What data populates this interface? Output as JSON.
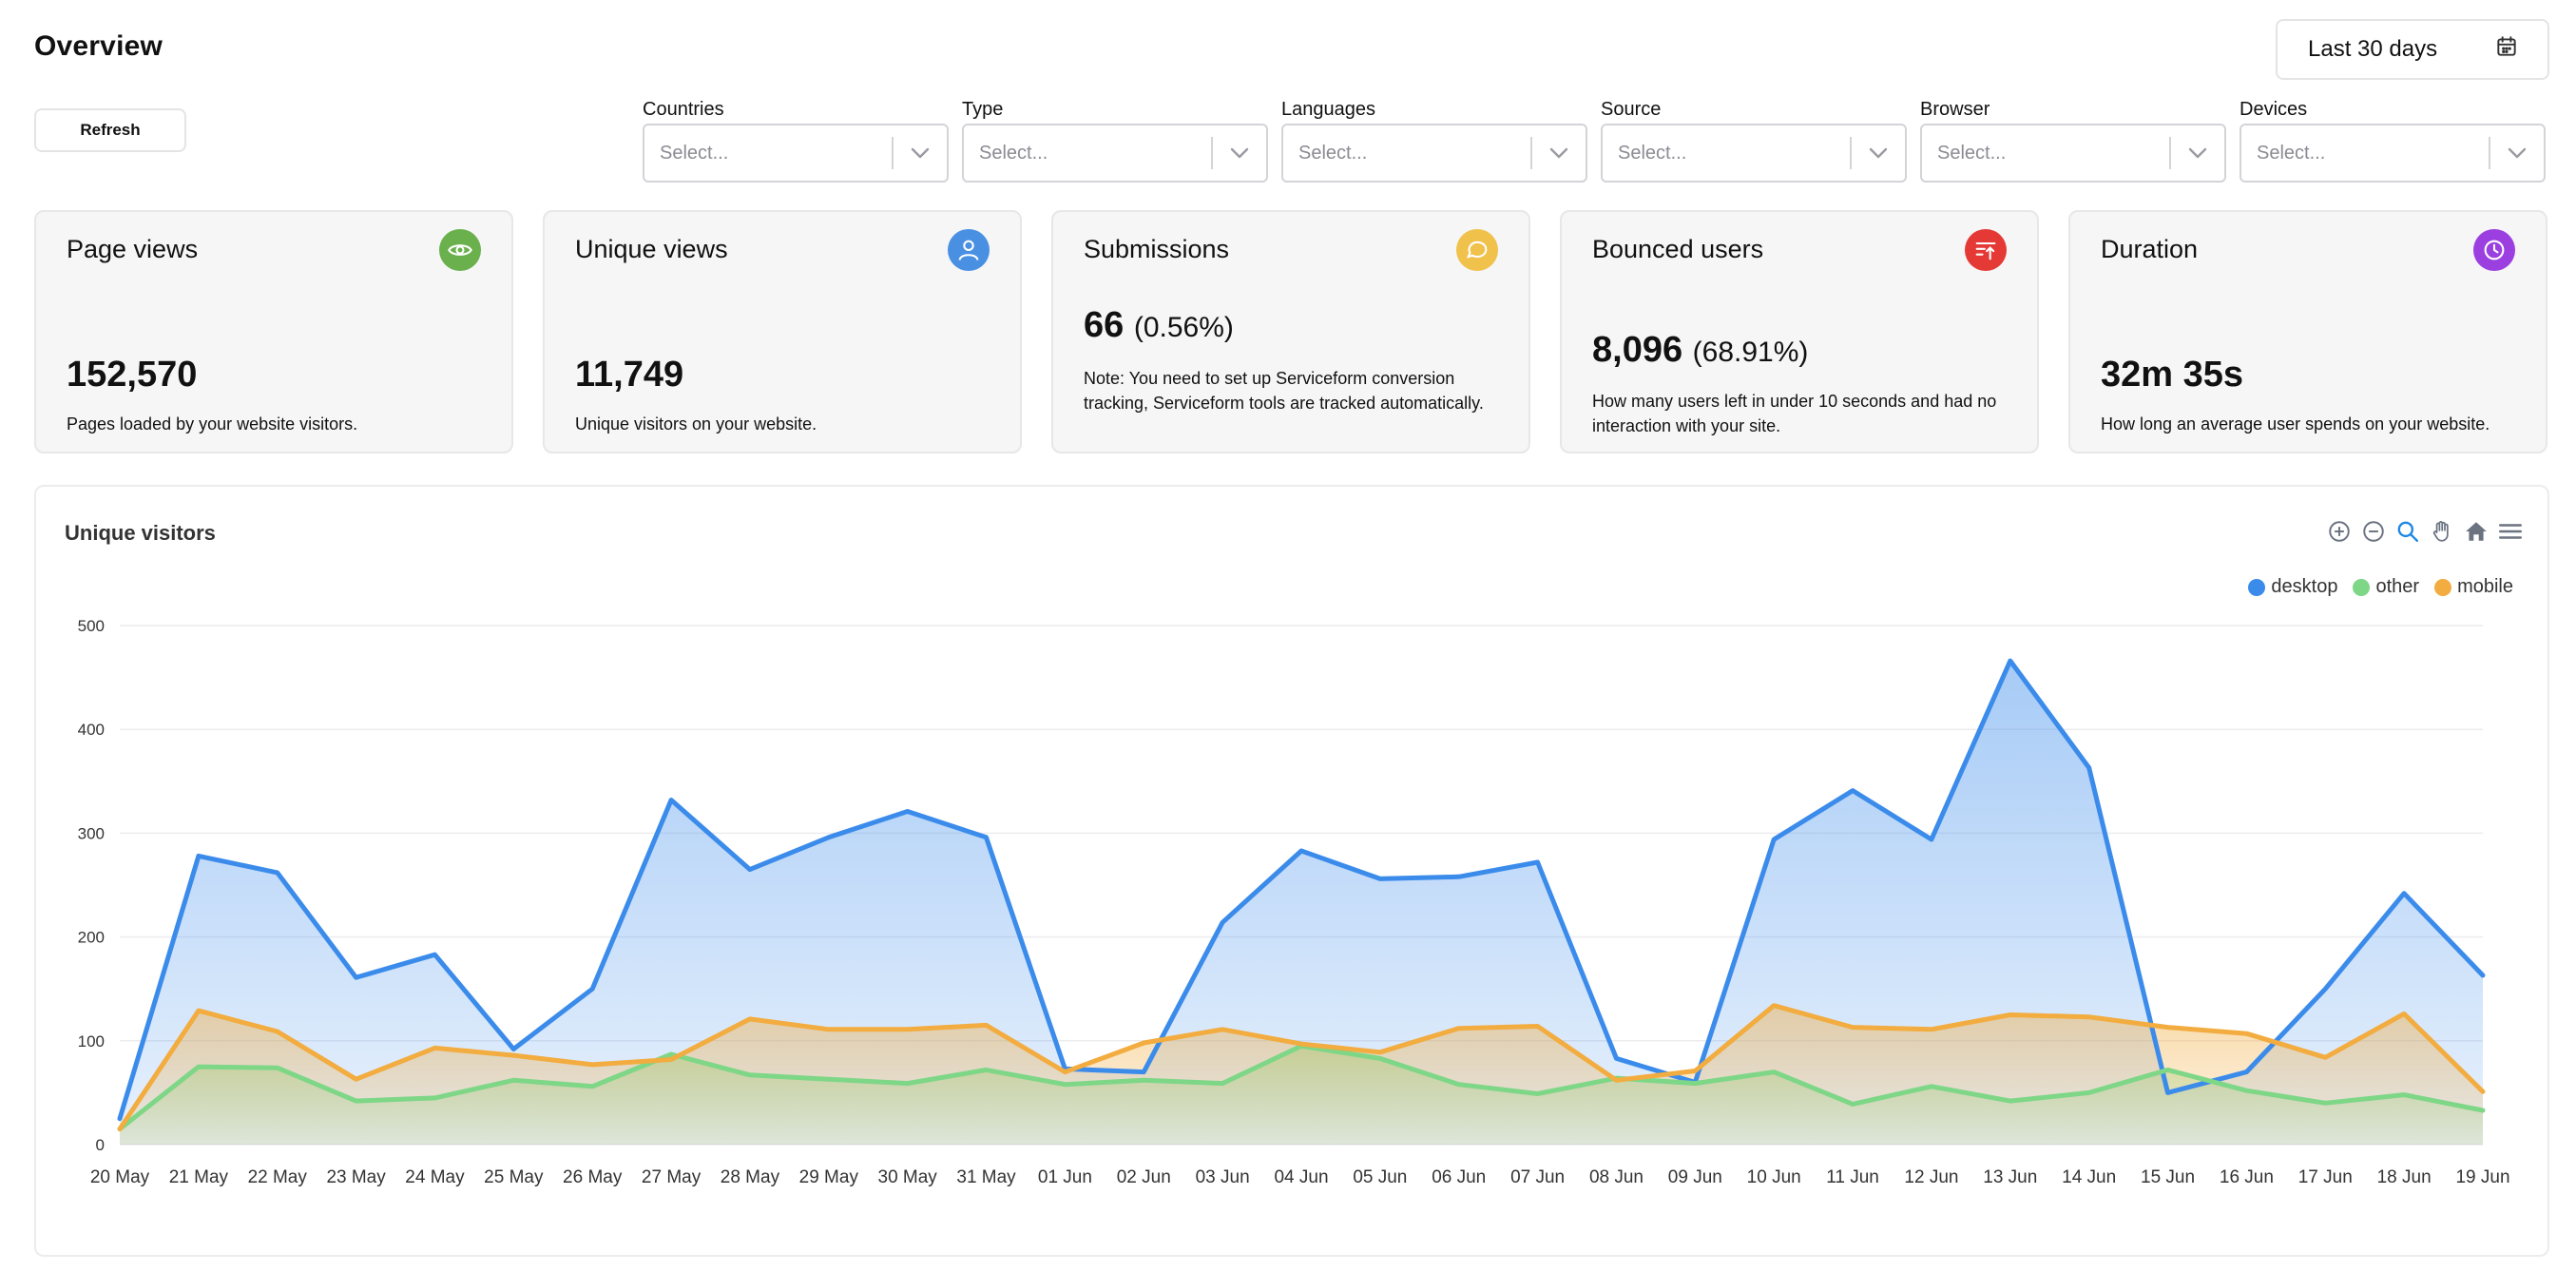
{
  "header": {
    "title": "Overview",
    "date_range": "Last 30 days",
    "refresh_label": "Refresh"
  },
  "filters": [
    {
      "label": "Countries",
      "placeholder": "Select..."
    },
    {
      "label": "Type",
      "placeholder": "Select..."
    },
    {
      "label": "Languages",
      "placeholder": "Select..."
    },
    {
      "label": "Source",
      "placeholder": "Select..."
    },
    {
      "label": "Browser",
      "placeholder": "Select..."
    },
    {
      "label": "Devices",
      "placeholder": "Select..."
    }
  ],
  "cards": [
    {
      "title": "Page views",
      "value": "152,570",
      "pct": "",
      "desc": "Pages loaded by your website visitors.",
      "icon": "eye-icon",
      "icon_color": "#6ab04c"
    },
    {
      "title": "Unique views",
      "value": "11,749",
      "pct": "",
      "desc": "Unique visitors on your website.",
      "icon": "user-icon",
      "icon_color": "#4a90e2"
    },
    {
      "title": "Submissions",
      "value": "66",
      "pct": "(0.56%)",
      "desc": "Note: You need to set up Serviceform conversion tracking, Serviceform tools are tracked automatically.",
      "icon": "chat-icon",
      "icon_color": "#f0c14b"
    },
    {
      "title": "Bounced users",
      "value": "8,096",
      "pct": "(68.91%)",
      "desc": "How many users left in under 10 seconds and had no interaction with your site.",
      "icon": "bounce-icon",
      "icon_color": "#e53935"
    },
    {
      "title": "Duration",
      "value": "32m 35s",
      "pct": "",
      "desc": "How long an average user spends on your website.",
      "icon": "clock-icon",
      "icon_color": "#9c3fe0"
    }
  ],
  "chart": {
    "title": "Unique visitors",
    "toolbar": [
      "zoom-in-icon",
      "zoom-out-icon",
      "zoom-select-icon",
      "pan-hand-icon",
      "home-icon",
      "menu-icon"
    ]
  },
  "chart_data": {
    "type": "area",
    "title": "Unique visitors",
    "x": [
      "20 May",
      "21 May",
      "22 May",
      "23 May",
      "24 May",
      "25 May",
      "26 May",
      "27 May",
      "28 May",
      "29 May",
      "30 May",
      "31 May",
      "01 Jun",
      "02 Jun",
      "03 Jun",
      "04 Jun",
      "05 Jun",
      "06 Jun",
      "07 Jun",
      "08 Jun",
      "09 Jun",
      "10 Jun",
      "11 Jun",
      "12 Jun",
      "13 Jun",
      "14 Jun",
      "15 Jun",
      "16 Jun",
      "17 Jun",
      "18 Jun",
      "19 Jun"
    ],
    "ylim": [
      0,
      500
    ],
    "yticks": [
      0,
      100,
      200,
      300,
      400,
      500
    ],
    "grid": true,
    "legend_position": "top-right",
    "series": [
      {
        "name": "desktop",
        "color": "#3b8beb",
        "values": [
          25,
          278,
          262,
          161,
          183,
          92,
          150,
          332,
          265,
          296,
          321,
          296,
          73,
          70,
          214,
          283,
          256,
          258,
          272,
          83,
          60,
          294,
          341,
          294,
          466,
          363,
          50,
          70,
          150,
          242,
          163
        ]
      },
      {
        "name": "other",
        "color": "#7ed687",
        "values": [
          15,
          75,
          74,
          42,
          45,
          62,
          56,
          87,
          67,
          63,
          59,
          72,
          58,
          62,
          59,
          95,
          83,
          58,
          49,
          64,
          59,
          70,
          39,
          56,
          42,
          50,
          72,
          52,
          40,
          48,
          33
        ]
      },
      {
        "name": "mobile",
        "color": "#f2ac3f",
        "values": [
          15,
          129,
          109,
          63,
          93,
          86,
          77,
          82,
          121,
          111,
          111,
          115,
          70,
          98,
          111,
          97,
          89,
          112,
          114,
          62,
          71,
          134,
          113,
          111,
          125,
          123,
          113,
          107,
          84,
          126,
          51
        ]
      }
    ]
  }
}
